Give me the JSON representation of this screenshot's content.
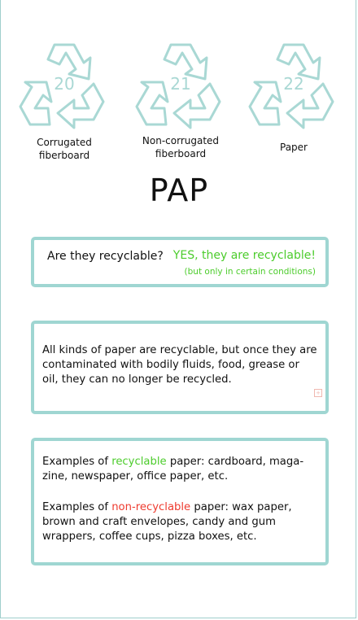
{
  "symbols": [
    {
      "code": "20",
      "label_line1": "Corrugated",
      "label_line2": "fiberboard"
    },
    {
      "code": "21",
      "label_line1": "Non-corrugated",
      "label_line2": "fiberboard"
    },
    {
      "code": "22",
      "label_line1": "Paper",
      "label_line2": ""
    }
  ],
  "abbreviation": "PAP",
  "recyclable_card": {
    "question": "Are they recyclable?",
    "answer": "YES, they are recyclable!",
    "condition": "(but only in certain conditions)"
  },
  "info_card": {
    "text": "All kinds of paper are recyclable, but once they are contaminated with bodily fluids, food, grease or oil, they can no longer be recycled."
  },
  "examples_card": {
    "recyclable_prefix": "Examples of ",
    "recyclable_word": "recyclable",
    "recyclable_suffix": " paper: cardboard, maga-zine, newspaper, office paper, etc.",
    "nonrecyclable_prefix": "Examples of ",
    "nonrecyclable_word": "non-recyclable",
    "nonrecyclable_suffix": " paper: wax paper, brown and craft envelopes, candy and gum wrappers, coffee cups, pizza boxes, etc."
  },
  "colors": {
    "accent_teal": "#9fd6d2",
    "green": "#4ccc2c",
    "red": "#ee3b2f"
  }
}
